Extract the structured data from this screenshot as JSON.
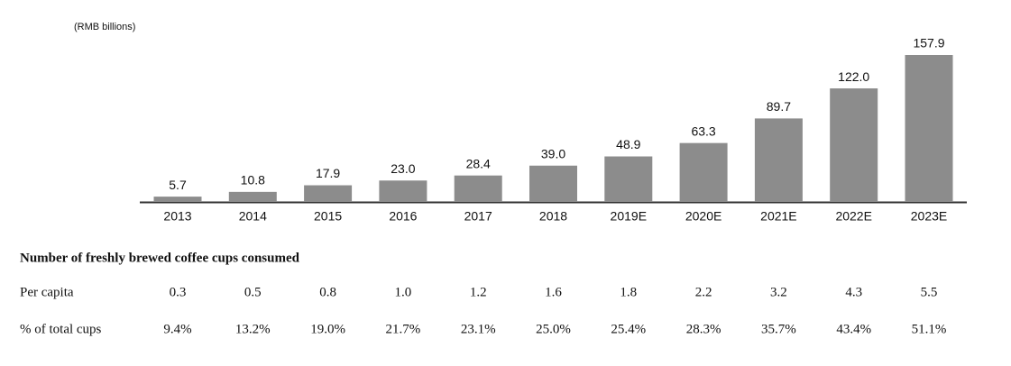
{
  "chart_data": {
    "type": "bar",
    "unit_label": "(RMB billions)",
    "categories": [
      "2013",
      "2014",
      "2015",
      "2016",
      "2017",
      "2018",
      "2019E",
      "2020E",
      "2021E",
      "2022E",
      "2023E"
    ],
    "values": [
      5.7,
      10.8,
      17.9,
      23.0,
      28.4,
      39.0,
      48.9,
      63.3,
      89.7,
      122.0,
      157.9
    ],
    "value_labels": [
      "5.7",
      "10.8",
      "17.9",
      "23.0",
      "28.4",
      "39.0",
      "48.9",
      "63.3",
      "89.7",
      "122.0",
      "157.9"
    ],
    "color": "#8c8c8c"
  },
  "table": {
    "title": "Number of freshly brewed coffee cups consumed",
    "rows": [
      {
        "label": "Per capita",
        "values": [
          "0.3",
          "0.5",
          "0.8",
          "1.0",
          "1.2",
          "1.6",
          "1.8",
          "2.2",
          "3.2",
          "4.3",
          "5.5"
        ]
      },
      {
        "label": "% of total cups",
        "values": [
          "9.4%",
          "13.2%",
          "19.0%",
          "21.7%",
          "23.1%",
          "25.0%",
          "25.4%",
          "28.3%",
          "35.7%",
          "43.4%",
          "51.1%"
        ]
      }
    ]
  }
}
